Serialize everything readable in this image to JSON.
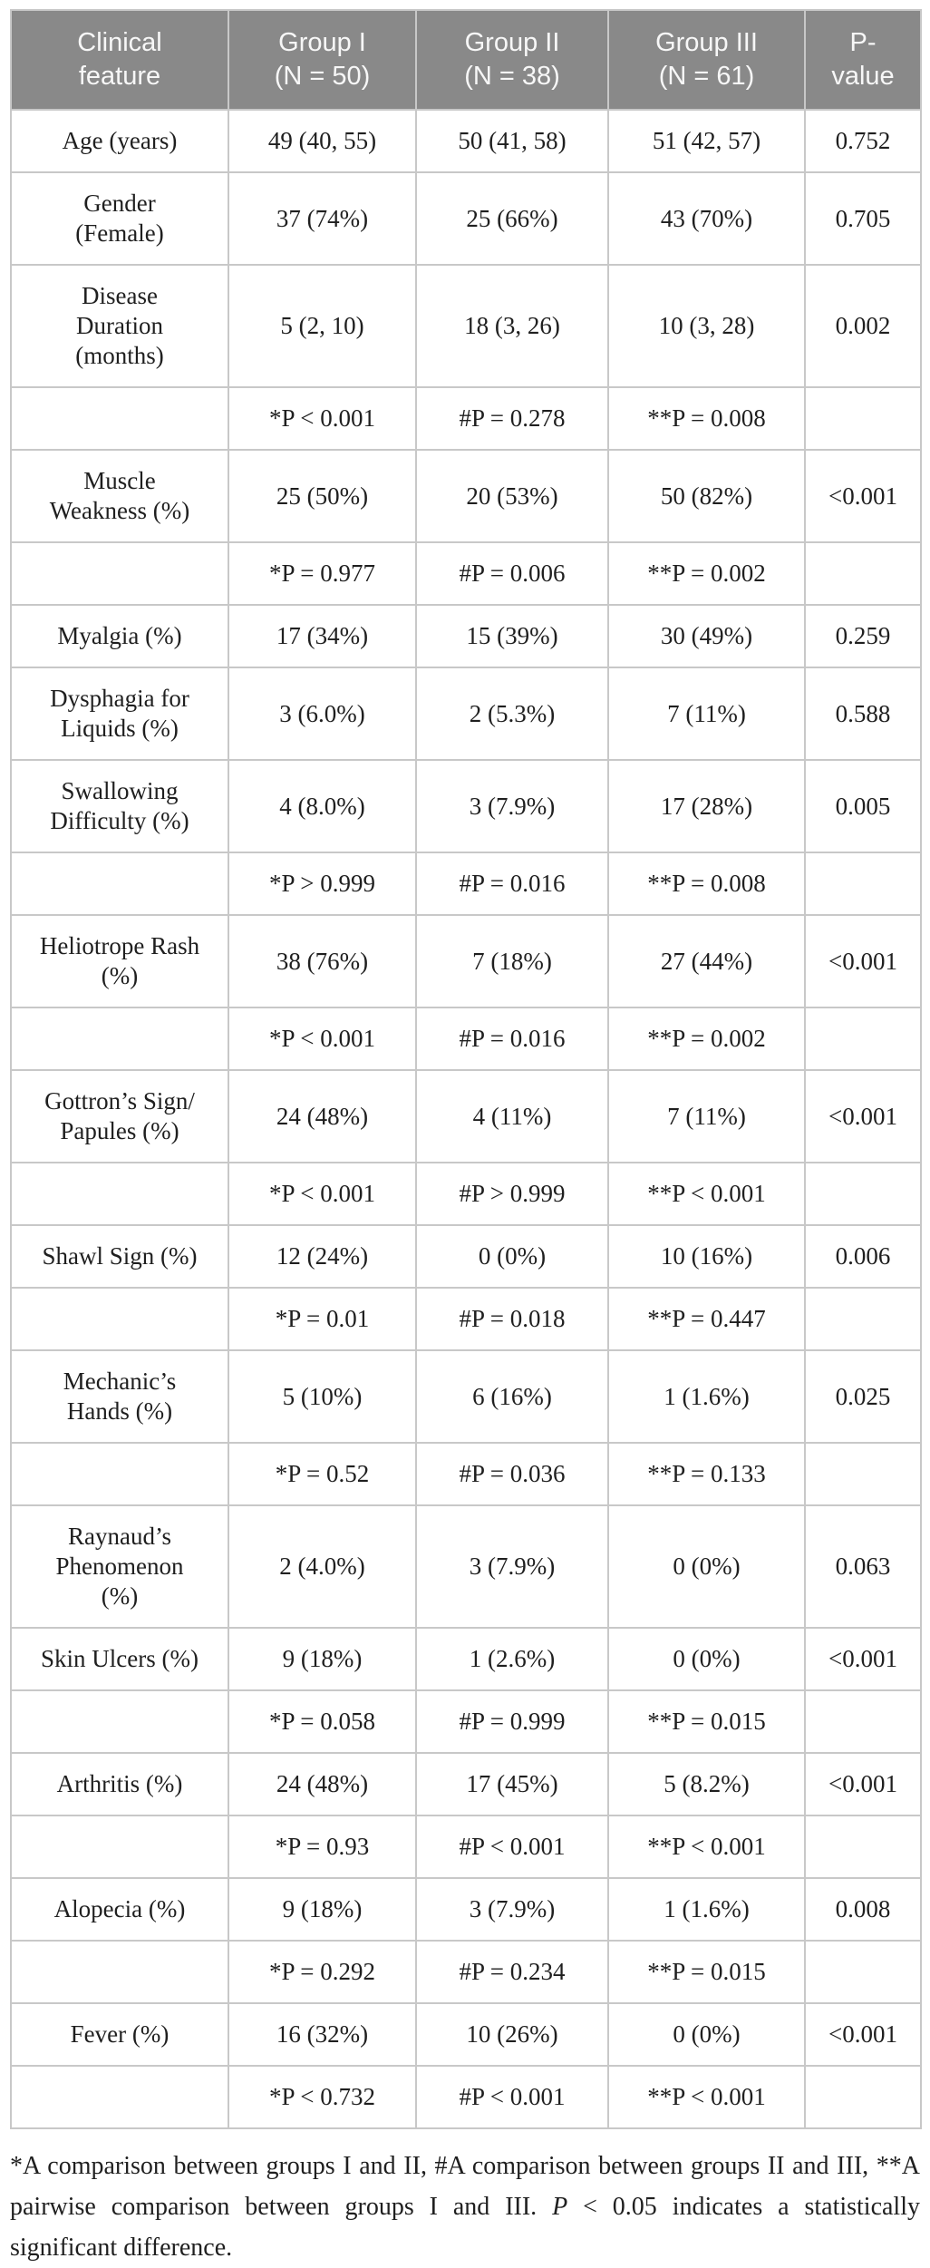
{
  "colors": {
    "header_background": "#898989",
    "header_text": "#f7f7f7",
    "grid_border": "#c8c8c8",
    "body_text": "#1f1f1f",
    "page_background": "#ffffff"
  },
  "table": {
    "header": [
      "Clinical\nfeature",
      "Group I\n(N = 50)",
      "Group II\n(N = 38)",
      "Group III\n(N = 61)",
      "P-\nvalue"
    ],
    "rows": [
      {
        "type": "data",
        "feature": "Age (years)",
        "g1": "49 (40, 55)",
        "g2": "50 (41, 58)",
        "g3": "51 (42, 57)",
        "p": "0.752"
      },
      {
        "type": "data",
        "feature": "Gender\n(Female)",
        "g1": "37 (74%)",
        "g2": "25 (66%)",
        "g3": "43 (70%)",
        "p": "0.705"
      },
      {
        "type": "data",
        "feature": "Disease\nDuration\n(months)",
        "g1": "5 (2, 10)",
        "g2": "18 (3, 26)",
        "g3": "10 (3, 28)",
        "p": "0.002"
      },
      {
        "type": "pairwise",
        "feature": "",
        "g1": "*P < 0.001",
        "g2": "#P = 0.278",
        "g3": "**P = 0.008",
        "p": ""
      },
      {
        "type": "data",
        "feature": "Muscle\nWeakness (%)",
        "g1": "25 (50%)",
        "g2": "20 (53%)",
        "g3": "50 (82%)",
        "p": "<0.001"
      },
      {
        "type": "pairwise",
        "feature": "",
        "g1": "*P = 0.977",
        "g2": "#P = 0.006",
        "g3": "**P = 0.002",
        "p": ""
      },
      {
        "type": "data",
        "feature": "Myalgia (%)",
        "g1": "17 (34%)",
        "g2": "15 (39%)",
        "g3": "30 (49%)",
        "p": "0.259"
      },
      {
        "type": "data",
        "feature": "Dysphagia for\nLiquids (%)",
        "g1": "3 (6.0%)",
        "g2": "2 (5.3%)",
        "g3": "7 (11%)",
        "p": "0.588"
      },
      {
        "type": "data",
        "feature": "Swallowing\nDifficulty (%)",
        "g1": "4 (8.0%)",
        "g2": "3 (7.9%)",
        "g3": "17 (28%)",
        "p": "0.005"
      },
      {
        "type": "pairwise",
        "feature": "",
        "g1": "*P > 0.999",
        "g2": "#P = 0.016",
        "g3": "**P = 0.008",
        "p": ""
      },
      {
        "type": "data",
        "feature": "Heliotrope Rash\n(%)",
        "g1": "38 (76%)",
        "g2": "7 (18%)",
        "g3": "27 (44%)",
        "p": "<0.001"
      },
      {
        "type": "pairwise",
        "feature": "",
        "g1": "*P < 0.001",
        "g2": "#P = 0.016",
        "g3": "**P = 0.002",
        "p": ""
      },
      {
        "type": "data",
        "feature": "Gottron’s Sign/\nPapules (%)",
        "g1": "24 (48%)",
        "g2": "4 (11%)",
        "g3": "7 (11%)",
        "p": "<0.001"
      },
      {
        "type": "pairwise",
        "feature": "",
        "g1": "*P < 0.001",
        "g2": "#P > 0.999",
        "g3": "**P < 0.001",
        "p": ""
      },
      {
        "type": "data",
        "feature": "Shawl Sign (%)",
        "g1": "12 (24%)",
        "g2": "0 (0%)",
        "g3": "10 (16%)",
        "p": "0.006"
      },
      {
        "type": "pairwise",
        "feature": "",
        "g1": "*P = 0.01",
        "g2": "#P = 0.018",
        "g3": "**P = 0.447",
        "p": ""
      },
      {
        "type": "data",
        "feature": "Mechanic’s\nHands (%)",
        "g1": "5 (10%)",
        "g2": "6 (16%)",
        "g3": "1 (1.6%)",
        "p": "0.025"
      },
      {
        "type": "pairwise",
        "feature": "",
        "g1": "*P = 0.52",
        "g2": "#P = 0.036",
        "g3": "**P = 0.133",
        "p": ""
      },
      {
        "type": "data",
        "feature": "Raynaud’s\nPhenomenon\n(%)",
        "g1": "2 (4.0%)",
        "g2": "3 (7.9%)",
        "g3": "0 (0%)",
        "p": "0.063"
      },
      {
        "type": "data",
        "feature": "Skin Ulcers (%)",
        "g1": "9 (18%)",
        "g2": "1 (2.6%)",
        "g3": "0 (0%)",
        "p": "<0.001"
      },
      {
        "type": "pairwise",
        "feature": "",
        "g1": "*P = 0.058",
        "g2": "#P = 0.999",
        "g3": "**P = 0.015",
        "p": ""
      },
      {
        "type": "data",
        "feature": "Arthritis (%)",
        "g1": "24 (48%)",
        "g2": "17 (45%)",
        "g3": "5 (8.2%)",
        "p": "<0.001"
      },
      {
        "type": "pairwise",
        "feature": "",
        "g1": "*P = 0.93",
        "g2": "#P < 0.001",
        "g3": "**P < 0.001",
        "p": ""
      },
      {
        "type": "data",
        "feature": "Alopecia (%)",
        "g1": "9 (18%)",
        "g2": "3 (7.9%)",
        "g3": "1 (1.6%)",
        "p": "0.008"
      },
      {
        "type": "pairwise",
        "feature": "",
        "g1": "*P = 0.292",
        "g2": "#P = 0.234",
        "g3": "**P = 0.015",
        "p": ""
      },
      {
        "type": "data",
        "feature": "Fever (%)",
        "g1": "16 (32%)",
        "g2": "10 (26%)",
        "g3": "0 (0%)",
        "p": "<0.001"
      },
      {
        "type": "pairwise",
        "feature": "",
        "g1": "*P < 0.732",
        "g2": "#P < 0.001",
        "g3": "**P < 0.001",
        "p": ""
      }
    ]
  },
  "footnote": {
    "part1": "*A comparison between groups I and II, #A comparison between groups II and III, **A pairwise comparison between groups I and III. ",
    "p_italic": "P",
    "part2": " < 0.05 indicates a statistically significant difference."
  }
}
